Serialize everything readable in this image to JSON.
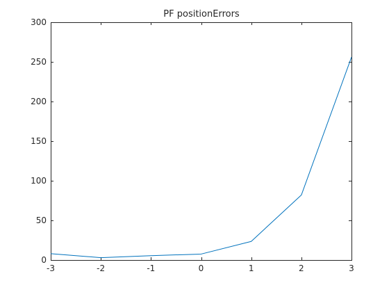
{
  "chart_data": {
    "type": "line",
    "title": "PF positionErrors",
    "xlabel": "",
    "ylabel": "",
    "xlim": [
      -3,
      3
    ],
    "ylim": [
      0,
      300
    ],
    "xticks": [
      -3,
      -2,
      -1,
      0,
      1,
      2,
      3
    ],
    "xtick_labels": [
      "-3",
      "-2",
      "-1",
      "0",
      "1",
      "2",
      "3"
    ],
    "yticks": [
      0,
      50,
      100,
      150,
      200,
      250,
      300
    ],
    "ytick_labels": [
      "0",
      "50",
      "100",
      "150",
      "200",
      "250",
      "300"
    ],
    "grid": false,
    "legend": "none",
    "series": [
      {
        "x": [
          -3,
          -2,
          -1,
          0,
          1,
          2,
          3
        ],
        "values": [
          8,
          3,
          5.5,
          7.5,
          23.5,
          82,
          256
        ],
        "color": "#0072BD"
      }
    ]
  },
  "colors": {
    "axis": "#262626",
    "line": "#0072BD",
    "background": "#ffffff"
  }
}
